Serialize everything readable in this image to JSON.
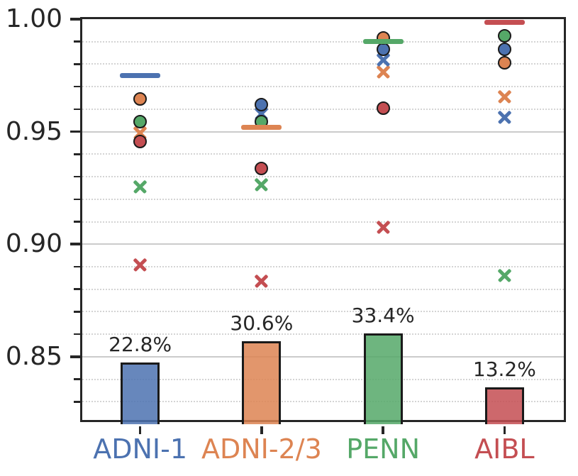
{
  "figure": {
    "background": "#ffffff",
    "axis_color": "#262626",
    "marker_edge_color": "#1a1a1a",
    "grid_major_color": "#cbcbcb",
    "grid_minor_color": "#d4d4d4"
  },
  "chart_data": {
    "type": "scatter",
    "title": "",
    "xlabel": "",
    "ylabel": "",
    "ylim": [
      0.82,
      1.0
    ],
    "ytick_values": [
      0.85,
      0.9,
      0.95,
      1.0
    ],
    "ytick_labels": [
      "0.85",
      "0.90",
      "0.95",
      "1.00"
    ],
    "minor_tick_step": 0.01,
    "grid": {
      "major": "solid",
      "minor": "dotted",
      "legend": "none"
    },
    "categories": [
      "ADNI-1",
      "ADNI-2/3",
      "PENN",
      "AIBL"
    ],
    "palette": {
      "blue": "#4C72B0",
      "orange": "#DD8452",
      "green": "#55A868",
      "red": "#C44E52"
    },
    "marker_legend": {
      "dash": "host-site score (horizontal line segment)",
      "circle": "filled circle marker",
      "x": "x marker"
    },
    "groups": [
      {
        "category": "ADNI-1",
        "color_key": "blue",
        "dash_value": 0.975,
        "circles": [
          {
            "color_key": "orange",
            "value": 0.9645
          },
          {
            "color_key": "green",
            "value": 0.9545
          },
          {
            "color_key": "red",
            "value": 0.9455
          }
        ],
        "x_marks": [
          {
            "color_key": "orange",
            "value": 0.9495
          },
          {
            "color_key": "green",
            "value": 0.9255
          },
          {
            "color_key": "red",
            "value": 0.891
          }
        ],
        "bar": {
          "label": "22.8%",
          "top_value": 0.8475,
          "base_value": 0.82
        }
      },
      {
        "category": "ADNI-2/3",
        "color_key": "orange",
        "dash_value": 0.952,
        "circles": [
          {
            "color_key": "blue",
            "value": 0.962
          },
          {
            "color_key": "green",
            "value": 0.9545
          },
          {
            "color_key": "red",
            "value": 0.9335
          }
        ],
        "x_marks": [
          {
            "color_key": "blue",
            "value": 0.958
          },
          {
            "color_key": "green",
            "value": 0.9265
          },
          {
            "color_key": "red",
            "value": 0.8835
          }
        ],
        "bar": {
          "label": "30.6%",
          "top_value": 0.857,
          "base_value": 0.82
        }
      },
      {
        "category": "PENN",
        "color_key": "green",
        "dash_value": 0.99,
        "circles": [
          {
            "color_key": "orange",
            "value": 0.9915
          },
          {
            "color_key": "blue",
            "value": 0.9865
          },
          {
            "color_key": "red",
            "value": 0.9605
          }
        ],
        "x_marks": [
          {
            "color_key": "blue",
            "value": 0.982
          },
          {
            "color_key": "orange",
            "value": 0.9765
          },
          {
            "color_key": "red",
            "value": 0.9075
          }
        ],
        "bar": {
          "label": "33.4%",
          "top_value": 0.8605,
          "base_value": 0.82
        }
      },
      {
        "category": "AIBL",
        "color_key": "red",
        "dash_value": 0.9985,
        "circles": [
          {
            "color_key": "green",
            "value": 0.9925
          },
          {
            "color_key": "blue",
            "value": 0.9865
          },
          {
            "color_key": "orange",
            "value": 0.9805
          }
        ],
        "x_marks": [
          {
            "color_key": "orange",
            "value": 0.9655
          },
          {
            "color_key": "blue",
            "value": 0.9565
          },
          {
            "color_key": "green",
            "value": 0.886
          }
        ],
        "bar": {
          "label": "13.2%",
          "top_value": 0.8365,
          "base_value": 0.82
        }
      }
    ]
  }
}
